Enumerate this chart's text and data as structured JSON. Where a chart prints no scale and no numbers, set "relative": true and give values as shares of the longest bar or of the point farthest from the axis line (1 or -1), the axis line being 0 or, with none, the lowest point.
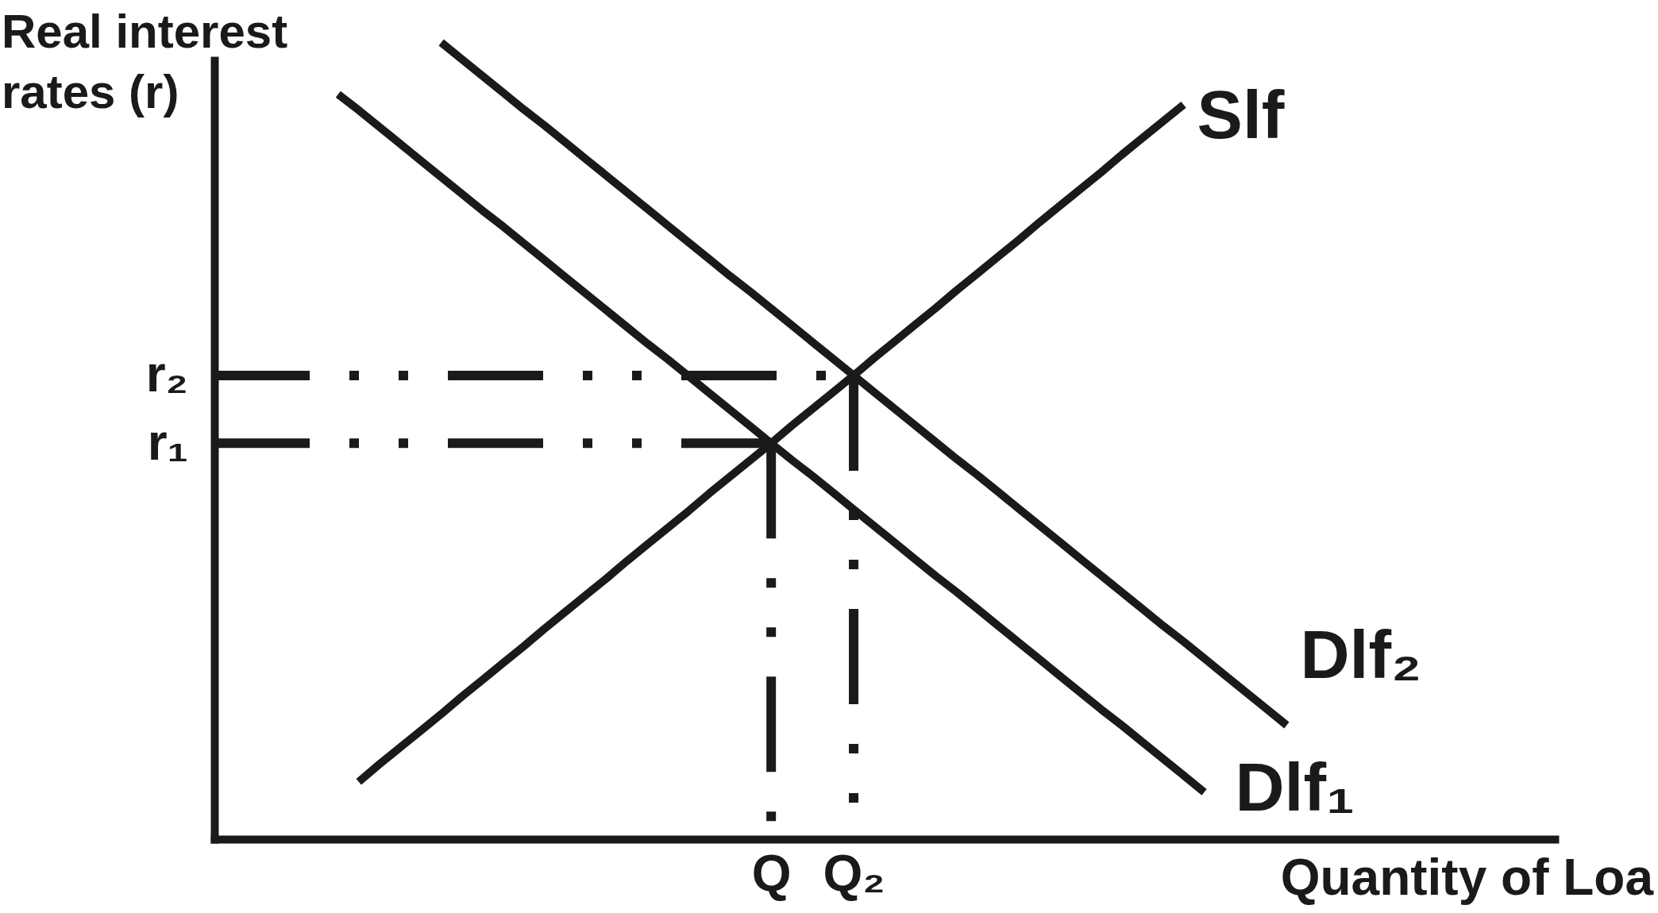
{
  "chart_data": {
    "type": "line",
    "relative": true,
    "xlabel": "Quantity of Loa",
    "ylabel": "Real interest rates (r)",
    "categories": [
      null,
      null,
      null,
      null,
      null,
      null,
      null,
      null,
      null,
      null,
      null,
      null,
      null,
      null,
      null,
      null,
      null,
      null,
      null,
      null,
      null,
      null,
      null,
      null,
      null,
      null,
      null,
      "Q",
      null,
      null,
      null,
      "Q₂",
      null,
      null,
      null,
      null,
      null,
      null,
      null,
      null,
      null,
      null,
      null,
      null,
      null,
      null,
      null,
      null,
      null,
      null,
      null,
      null,
      null,
      null,
      null,
      null,
      null,
      null,
      null,
      null,
      null,
      null,
      null,
      null,
      null,
      null
    ],
    "series": [
      {
        "name": "Slf",
        "color": "#1a1a1a",
        "values": [
          null,
          null,
          null,
          null,
          null,
          null,
          null,
          0.072,
          0.094,
          0.115,
          0.136,
          0.157,
          0.179,
          0.2,
          0.221,
          0.242,
          0.264,
          0.285,
          0.306,
          0.327,
          0.349,
          0.37,
          0.391,
          0.412,
          0.434,
          0.455,
          0.476,
          0.497,
          0.519,
          0.54,
          0.561,
          0.582,
          0.604,
          0.625,
          0.646,
          0.667,
          0.689,
          0.71,
          0.731,
          0.752,
          0.774,
          0.795,
          0.816,
          0.837,
          0.859,
          0.88,
          0.901,
          0.922,
          null,
          null,
          null,
          null,
          null,
          null,
          null,
          null,
          null,
          null,
          null,
          null,
          null,
          null,
          null,
          null,
          null,
          null
        ]
      },
      {
        "name": "Dlf₁",
        "color": "#1a1a1a",
        "values": [
          null,
          null,
          null,
          null,
          null,
          null,
          0.935,
          0.915,
          0.894,
          0.873,
          0.852,
          0.831,
          0.81,
          0.789,
          0.769,
          0.748,
          0.727,
          0.706,
          0.685,
          0.664,
          0.643,
          0.622,
          0.602,
          0.581,
          0.56,
          0.539,
          0.518,
          0.497,
          0.476,
          0.456,
          0.435,
          0.414,
          0.393,
          0.372,
          0.351,
          0.33,
          0.31,
          0.289,
          0.268,
          0.247,
          0.226,
          0.205,
          0.184,
          0.163,
          0.143,
          0.122,
          0.101,
          0.08,
          0.059,
          null,
          null,
          null,
          null,
          null,
          null,
          null,
          null,
          null,
          null,
          null,
          null,
          null,
          null,
          null,
          null,
          null
        ]
      },
      {
        "name": "Dlf₂",
        "color": "#1a1a1a",
        "values": [
          null,
          null,
          null,
          null,
          null,
          null,
          null,
          null,
          null,
          null,
          null,
          1,
          0.979,
          0.958,
          0.937,
          0.916,
          0.896,
          0.875,
          0.854,
          0.833,
          0.812,
          0.791,
          0.77,
          0.749,
          0.728,
          0.707,
          0.687,
          0.666,
          0.645,
          0.624,
          0.603,
          0.582,
          0.561,
          0.54,
          0.519,
          0.498,
          0.477,
          0.457,
          0.436,
          0.415,
          0.394,
          0.373,
          0.352,
          0.331,
          0.31,
          0.289,
          0.268,
          0.248,
          0.227,
          0.206,
          0.185,
          0.164,
          0.143,
          null,
          null,
          null,
          null,
          null,
          null,
          null,
          null,
          null,
          null,
          null,
          null,
          null
        ]
      },
      {
        "color": "#1a1a1a",
        "line_style": "dashed",
        "x": [
          "Q",
          "Q"
        ],
        "values": [
          0.497,
          0
        ]
      },
      {
        "color": "#1a1a1a",
        "line_style": "dashed",
        "x": [
          "Q₂",
          "Q₂"
        ],
        "values": [
          0.582,
          0
        ]
      }
    ],
    "ref_lines": [
      {
        "axis": "y",
        "value": 0.497,
        "label": "r₁",
        "color": "#1a1a1a",
        "line_style": "dashed"
      },
      {
        "axis": "y",
        "value": 0.582,
        "label": "r₂",
        "color": "#1a1a1a",
        "line_style": "dashed"
      }
    ]
  }
}
